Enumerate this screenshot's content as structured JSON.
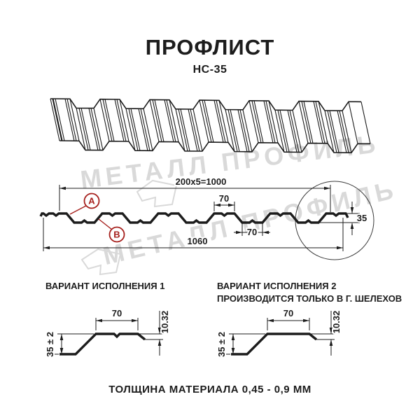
{
  "page": {
    "title": "ПРОФЛИСТ",
    "subtitle": "НС-35",
    "footer": "ТОЛЩИНА МАТЕРИАЛА 0,45 - 0,9 ММ"
  },
  "watermark": {
    "text": "МЕТАЛЛ ПРОФИЛЬ"
  },
  "colors": {
    "line": "#1c1c1c",
    "red": "#a6201d",
    "watermark": "#d9d9d9"
  },
  "cross_section": {
    "dim_pitch_total": "200x5=1000",
    "dim_rib_top": "70",
    "dim_rib_bottom": "70",
    "dim_overall_width": "1060",
    "dim_height": "35",
    "marker_a": "А",
    "marker_b": "В"
  },
  "variants": {
    "v1": {
      "title": "ВАРИАНТ ИСПОЛНЕНИЯ 1",
      "dim_width": "70",
      "dim_edge": "10.32",
      "dim_height": "35 ± 2"
    },
    "v2": {
      "title": "ВАРИАНТ ИСПОЛНЕНИЯ 2",
      "note": "ПРОИЗВОДИТСЯ ТОЛЬКО В Г. ШЕЛЕХОВ",
      "dim_width": "70",
      "dim_edge": "10.32",
      "dim_height": "35 ± 2"
    }
  }
}
